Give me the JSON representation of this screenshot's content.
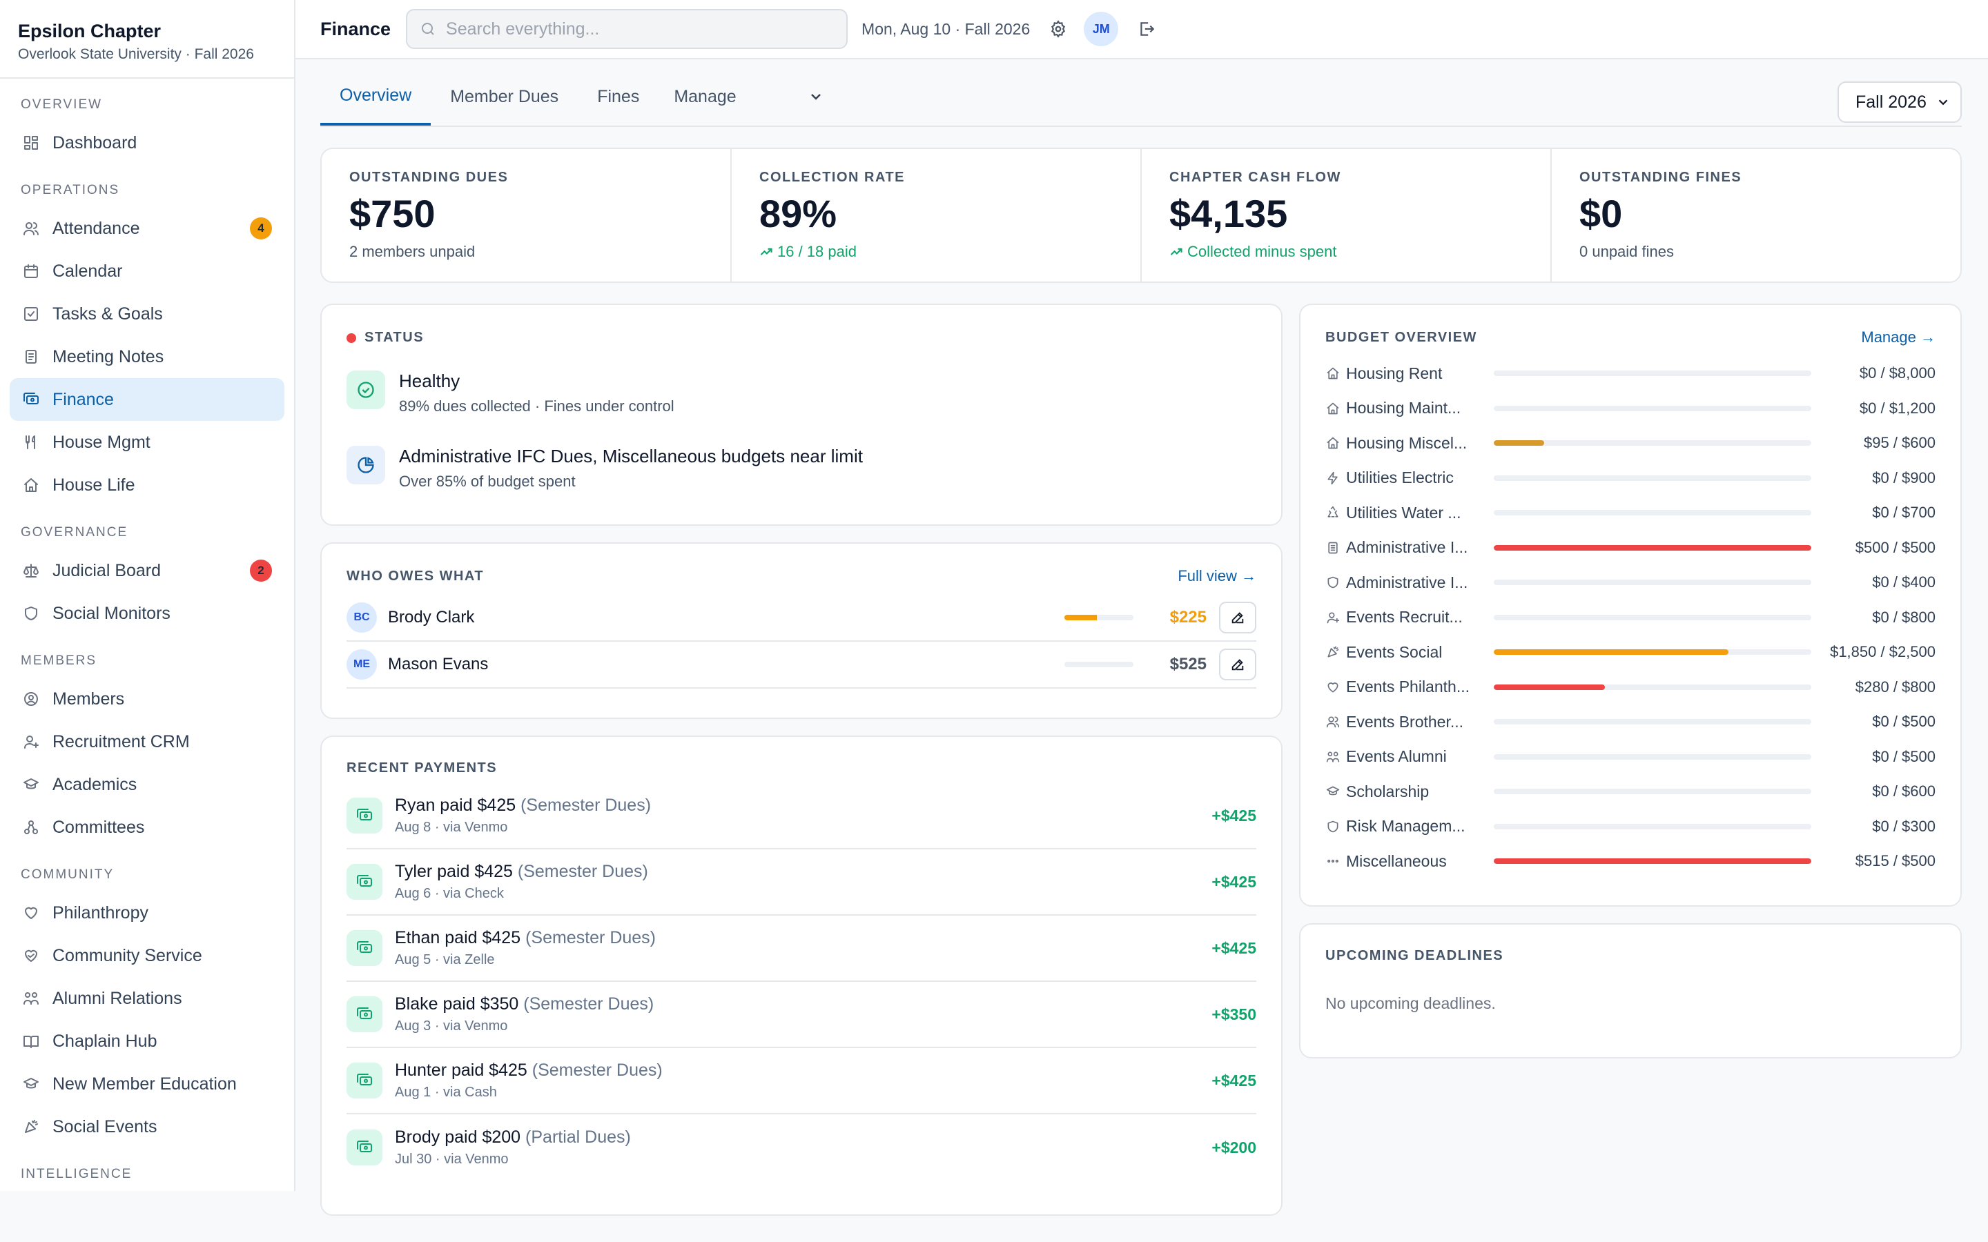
{
  "brand": {
    "name": "Epsilon Chapter",
    "subtitle": "Overlook State University · Fall 2026"
  },
  "sidebar": {
    "sections": [
      {
        "title": "OVERVIEW",
        "items": [
          {
            "label": "Dashboard",
            "icon": "dashboard-icon"
          }
        ]
      },
      {
        "title": "OPERATIONS",
        "items": [
          {
            "label": "Attendance",
            "icon": "users-icon",
            "badge": "4",
            "badge_color": "#f59e0b",
            "badge_text": "#1f2937"
          },
          {
            "label": "Calendar",
            "icon": "calendar-icon"
          },
          {
            "label": "Tasks & Goals",
            "icon": "checkbox-icon"
          },
          {
            "label": "Meeting Notes",
            "icon": "notes-icon"
          },
          {
            "label": "Finance",
            "icon": "finance-icon",
            "active": true
          },
          {
            "label": "House Mgmt",
            "icon": "utensils-icon"
          },
          {
            "label": "House Life",
            "icon": "home-icon"
          }
        ]
      },
      {
        "title": "GOVERNANCE",
        "items": [
          {
            "label": "Judicial Board",
            "icon": "scale-icon",
            "badge": "2",
            "badge_color": "#ef4444",
            "badge_text": "#1f2937"
          },
          {
            "label": "Social Monitors",
            "icon": "shield-icon"
          }
        ]
      },
      {
        "title": "MEMBERS",
        "items": [
          {
            "label": "Members",
            "icon": "user-circle-icon"
          },
          {
            "label": "Recruitment CRM",
            "icon": "user-plus-icon"
          },
          {
            "label": "Academics",
            "icon": "graduation-cap-icon"
          },
          {
            "label": "Committees",
            "icon": "network-icon"
          }
        ]
      },
      {
        "title": "COMMUNITY",
        "items": [
          {
            "label": "Philanthropy",
            "icon": "heart-icon"
          },
          {
            "label": "Community Service",
            "icon": "heart-handshake-icon"
          },
          {
            "label": "Alumni Relations",
            "icon": "people-icon"
          },
          {
            "label": "Chaplain Hub",
            "icon": "book-open-icon"
          },
          {
            "label": "New Member Education",
            "icon": "graduation-cap-icon"
          },
          {
            "label": "Social Events",
            "icon": "party-icon"
          }
        ]
      },
      {
        "title": "INTELLIGENCE",
        "items": []
      }
    ]
  },
  "topbar": {
    "title": "Finance",
    "search_placeholder": "Search everything...",
    "date": "Mon, Aug 10 · Fall 2026",
    "avatar": "JM"
  },
  "tabs": {
    "items": [
      "Overview",
      "Member Dues",
      "Fines"
    ],
    "manage": "Manage",
    "term": "Fall 2026"
  },
  "stats": [
    {
      "label": "OUTSTANDING DUES",
      "value": "$750",
      "sub": "2 members unpaid",
      "green": false
    },
    {
      "label": "COLLECTION RATE",
      "value": "89%",
      "sub": "16 / 18 paid",
      "green": true
    },
    {
      "label": "CHAPTER CASH FLOW",
      "value": "$4,135",
      "sub": "Collected minus spent",
      "green": true
    },
    {
      "label": "OUTSTANDING FINES",
      "value": "$0",
      "sub": "0 unpaid fines",
      "green": false
    }
  ],
  "status": {
    "title": "STATUS",
    "items": [
      {
        "title": "Healthy",
        "desc": "89% dues collected · Fines under control"
      },
      {
        "title": "Administrative IFC Dues, Miscellaneous budgets near limit",
        "desc": "Over 85% of budget spent"
      }
    ]
  },
  "owes": {
    "title": "WHO OWES WHAT",
    "link": "Full view →",
    "rows": [
      {
        "initials": "BC",
        "name": "Brody Clark",
        "amount": "$225",
        "paid_fraction": 0.47,
        "color": "#f59e0b"
      },
      {
        "initials": "ME",
        "name": "Mason Evans",
        "amount": "$525",
        "paid_fraction": 0,
        "color": "#4b5563"
      }
    ]
  },
  "payments": {
    "title": "RECENT PAYMENTS",
    "rows": [
      {
        "title": "Ryan paid $425",
        "type": "(Semester Dues)",
        "meta": "Aug 8 · via Venmo",
        "amount": "+$425"
      },
      {
        "title": "Tyler paid $425",
        "type": "(Semester Dues)",
        "meta": "Aug 6 · via Check",
        "amount": "+$425"
      },
      {
        "title": "Ethan paid $425",
        "type": "(Semester Dues)",
        "meta": "Aug 5 · via Zelle",
        "amount": "+$425"
      },
      {
        "title": "Blake paid $350",
        "type": "(Semester Dues)",
        "meta": "Aug 3 · via Venmo",
        "amount": "+$350"
      },
      {
        "title": "Hunter paid $425",
        "type": "(Semester Dues)",
        "meta": "Aug 1 · via Cash",
        "amount": "+$425"
      },
      {
        "title": "Brody paid $200",
        "type": "(Partial Dues)",
        "meta": "Jul 30 · via Venmo",
        "amount": "+$200"
      }
    ]
  },
  "budget": {
    "title": "BUDGET OVERVIEW",
    "link": "Manage →",
    "rows": [
      {
        "label": "Housing Rent",
        "icon": "home-icon",
        "amount": "$0 / $8,000",
        "fraction": 0,
        "color": "#f59e0b"
      },
      {
        "label": "Housing Maint...",
        "icon": "home-icon",
        "amount": "$0 / $1,200",
        "fraction": 0,
        "color": "#f59e0b"
      },
      {
        "label": "Housing Miscel...",
        "icon": "home-icon",
        "amount": "$95 / $600",
        "fraction": 0.158,
        "color": "#d89a2b"
      },
      {
        "label": "Utilities Electric",
        "icon": "bolt-icon",
        "amount": "$0 / $900",
        "fraction": 0,
        "color": "#f59e0b"
      },
      {
        "label": "Utilities Water ...",
        "icon": "recycle-icon",
        "amount": "$0 / $700",
        "fraction": 0,
        "color": "#f59e0b"
      },
      {
        "label": "Administrative I...",
        "icon": "document-icon",
        "amount": "$500 / $500",
        "fraction": 1,
        "color": "#ef4444"
      },
      {
        "label": "Administrative I...",
        "icon": "shield-icon",
        "amount": "$0 / $400",
        "fraction": 0,
        "color": "#f59e0b"
      },
      {
        "label": "Events Recruit...",
        "icon": "user-plus-icon",
        "amount": "$0 / $800",
        "fraction": 0,
        "color": "#f59e0b"
      },
      {
        "label": "Events Social",
        "icon": "party-icon",
        "amount": "$1,850 / $2,500",
        "fraction": 0.74,
        "color": "#f59e0b"
      },
      {
        "label": "Events Philanth...",
        "icon": "heart-icon",
        "amount": "$280 / $800",
        "fraction": 0.35,
        "color": "#ef4444"
      },
      {
        "label": "Events Brother...",
        "icon": "users-icon",
        "amount": "$0 / $500",
        "fraction": 0,
        "color": "#f59e0b"
      },
      {
        "label": "Events Alumni",
        "icon": "people-icon",
        "amount": "$0 / $500",
        "fraction": 0,
        "color": "#f59e0b"
      },
      {
        "label": "Scholarship",
        "icon": "graduation-cap-icon",
        "amount": "$0 / $600",
        "fraction": 0,
        "color": "#f59e0b"
      },
      {
        "label": "Risk Managem...",
        "icon": "shield-icon",
        "amount": "$0 / $300",
        "fraction": 0,
        "color": "#f59e0b"
      },
      {
        "label": "Miscellaneous",
        "icon": "dots-icon",
        "amount": "$515 / $500",
        "fraction": 1,
        "color": "#ef4444"
      }
    ]
  },
  "deadlines": {
    "title": "UPCOMING DEADLINES",
    "empty": "No upcoming deadlines."
  }
}
